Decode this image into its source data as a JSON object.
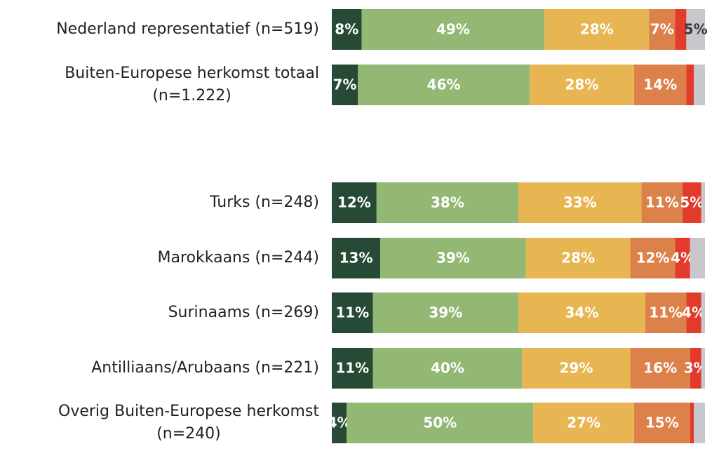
{
  "chart_data": {
    "type": "stacked-bar-horizontal",
    "categories": [
      "Nederland representatief (n=519)",
      "Buiten-Europese herkomst totaal\n(n=1.222)",
      "Turks (n=248)",
      "Marokkaans (n=244)",
      "Surinaams (n=269)",
      "Antilliaans/Arubaans (n=221)",
      "Overig Buiten-Europese herkomst\n(n=240)"
    ],
    "xlim": [
      0,
      100
    ],
    "series": [
      {
        "color": "#264a35",
        "label_color": "#ffffff",
        "values": [
          8,
          7,
          12,
          13,
          11,
          11,
          4
        ],
        "value_labels": [
          "8%",
          "7%",
          "12%",
          "13%",
          "11%",
          "11%",
          "4%"
        ]
      },
      {
        "color": "#93b874",
        "label_color": "#ffffff",
        "values": [
          49,
          46,
          38,
          39,
          39,
          40,
          50
        ],
        "value_labels": [
          "49%",
          "46%",
          "38%",
          "39%",
          "39%",
          "40%",
          "50%"
        ]
      },
      {
        "color": "#e8b553",
        "label_color": "#ffffff",
        "values": [
          28,
          28,
          33,
          28,
          34,
          29,
          27
        ],
        "value_labels": [
          "28%",
          "28%",
          "33%",
          "28%",
          "34%",
          "29%",
          "27%"
        ]
      },
      {
        "color": "#dd814a",
        "label_color": "#ffffff",
        "values": [
          7,
          14,
          11,
          12,
          11,
          16,
          15
        ],
        "value_labels": [
          "7%",
          "14%",
          "11%",
          "12%",
          "11%",
          "16%",
          "15%"
        ]
      },
      {
        "color": "#e33b2b",
        "label_color": "#ffffff",
        "values": [
          3,
          2,
          5,
          4,
          4,
          3,
          1
        ],
        "value_labels": [
          null,
          null,
          "5%",
          "4%",
          "4%",
          "3%",
          null
        ]
      },
      {
        "color": "#c8c8cc",
        "label_color": "#3a3a3a",
        "values": [
          5,
          3,
          1,
          4,
          1,
          1,
          3
        ],
        "value_labels": [
          "5%",
          null,
          null,
          null,
          null,
          null,
          null
        ]
      }
    ]
  }
}
